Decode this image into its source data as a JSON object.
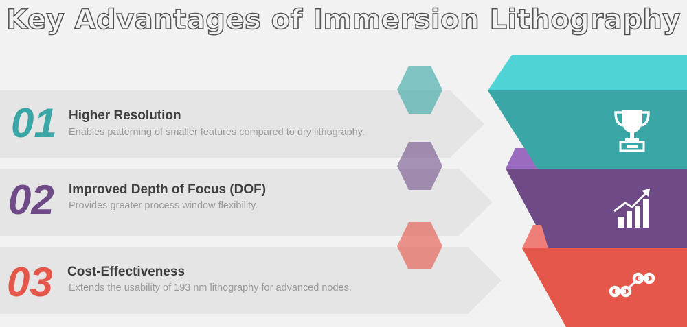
{
  "title": "Key Advantages of Immersion Lithography",
  "colors": {
    "teal": "#3aa6a6",
    "teal_light": "#4fd3d6",
    "purple": "#6e4a86",
    "purple_light": "#9b6bc1",
    "coral": "#e5574a",
    "coral_light": "#f07e78",
    "band": "#e5e5e5",
    "background": "#f1f2f1"
  },
  "items": [
    {
      "number": "01",
      "heading": "Higher Resolution",
      "description": "Enables patterning of smaller features compared to dry lithography.",
      "icon": "trophy-icon"
    },
    {
      "number": "02",
      "heading": "Improved Depth of Focus (DOF)",
      "description": "Provides greater process window flexibility.",
      "icon": "growth-chart-icon"
    },
    {
      "number": "03",
      "heading": "Cost-Effectiveness",
      "description": "Extends the usability of 193 nm lithography for advanced nodes.",
      "icon": "chain-link-icon"
    }
  ]
}
